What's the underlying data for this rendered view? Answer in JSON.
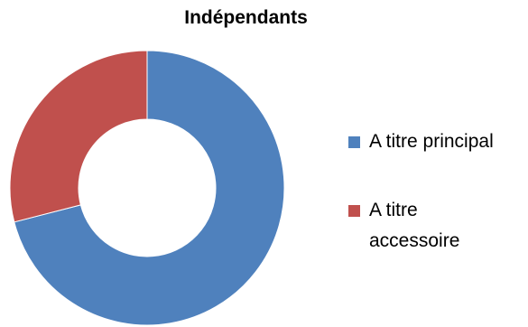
{
  "chart_data": {
    "type": "pie",
    "variant": "donut",
    "title": "Indépendants",
    "series": [
      {
        "name": "A titre principal",
        "value": 71,
        "color": "#4F81BD"
      },
      {
        "name": "A titre\naccessoire",
        "value": 29,
        "color": "#C0504D"
      }
    ],
    "legend": {
      "placement": "right"
    },
    "start_angle": "top",
    "direction": "clockwise"
  }
}
